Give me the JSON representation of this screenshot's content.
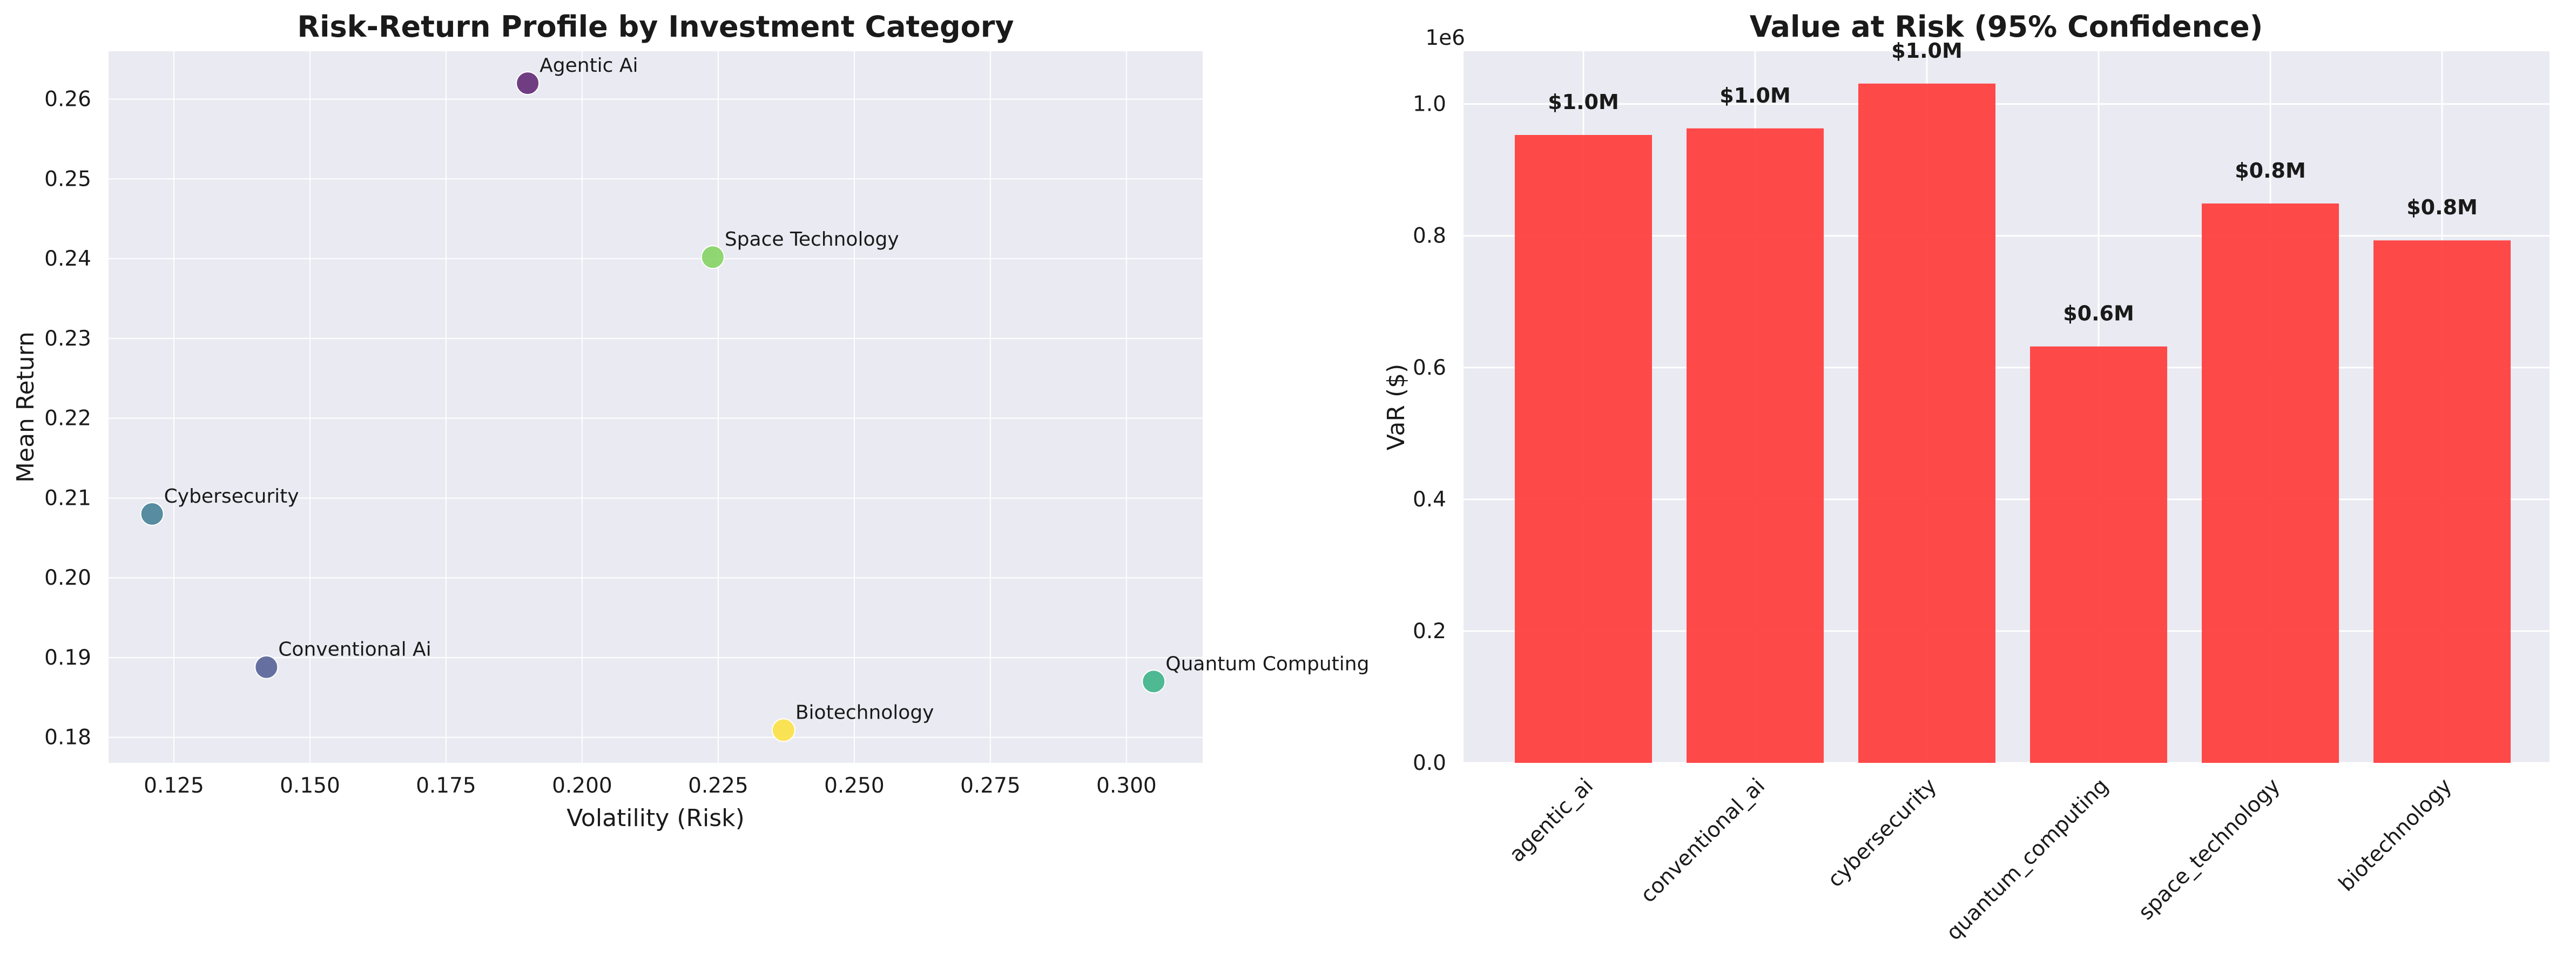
{
  "chart_data": [
    {
      "type": "scatter",
      "title": "Risk-Return Profile by Investment Category",
      "xlabel": "Volatility (Risk)",
      "ylabel": "Mean Return",
      "xlim": [
        0.113,
        0.314
      ],
      "ylim": [
        0.1768,
        0.266
      ],
      "xticks": [
        "0.125",
        "0.150",
        "0.175",
        "0.200",
        "0.225",
        "0.250",
        "0.275",
        "0.300"
      ],
      "yticks": [
        "0.18",
        "0.19",
        "0.20",
        "0.21",
        "0.22",
        "0.23",
        "0.24",
        "0.25",
        "0.26"
      ],
      "grid": true,
      "points": [
        {
          "label": "Agentic Ai",
          "x": 0.19,
          "y": 0.262,
          "color": "#5a1f6e"
        },
        {
          "label": "Conventional Ai",
          "x": 0.142,
          "y": 0.1888,
          "color": "#4f5a92"
        },
        {
          "label": "Cybersecurity",
          "x": 0.121,
          "y": 0.208,
          "color": "#3d7b93"
        },
        {
          "label": "Quantum Computing",
          "x": 0.305,
          "y": 0.187,
          "color": "#33b083"
        },
        {
          "label": "Space Technology",
          "x": 0.224,
          "y": 0.2402,
          "color": "#7fd15a"
        },
        {
          "label": "Biotechnology",
          "x": 0.237,
          "y": 0.1809,
          "color": "#fde03a"
        }
      ]
    },
    {
      "type": "bar",
      "title": "Value at Risk (95% Confidence)",
      "xlabel": "",
      "ylabel": "VaR ($)",
      "offset_label": "1e6",
      "ylim": [
        0,
        1.08
      ],
      "yticks": [
        "0.0",
        "0.2",
        "0.4",
        "0.6",
        "0.8",
        "1.0"
      ],
      "grid": true,
      "categories": [
        "agentic_ai",
        "conventional_ai",
        "cybersecurity",
        "quantum_computing",
        "space_technology",
        "biotechnology"
      ],
      "values": [
        0.953,
        0.963,
        1.031,
        0.632,
        0.849,
        0.793
      ],
      "value_labels": [
        "$1.0M",
        "$1.0M",
        "$1.0M",
        "$0.6M",
        "$0.8M",
        "$0.8M"
      ],
      "bar_color": "#ff3b3b"
    }
  ]
}
